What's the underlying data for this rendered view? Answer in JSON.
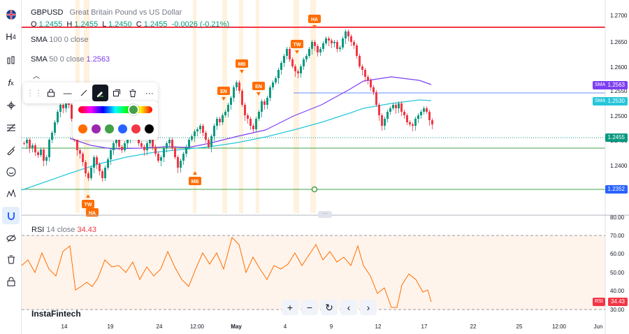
{
  "header": {
    "symbol": "GBPUSD",
    "name": "Great Britain Pound vs US Dollar",
    "o_label": "O",
    "o_value": "1.2455",
    "h_label": "H",
    "h_value": "1.2455",
    "l_label": "L",
    "l_value": "1.2450",
    "c_label": "C",
    "c_value": "1.2455",
    "change": "-0.0026 (-0.21%)"
  },
  "sma100": {
    "label": "SMA",
    "params": "100 0 close",
    "tag": "SMA",
    "value": "1.2530",
    "color": "#26c6da"
  },
  "sma50": {
    "label": "SMA",
    "params": "50 0 close",
    "value": "1.2563",
    "tag": "SMA",
    "color": "#7e3ff2"
  },
  "price_axis": {
    "ticks": [
      "1.2700",
      "1.2650",
      "1.2600",
      "1.2550",
      "1.2500",
      "1.2450",
      "1.2400",
      "1.2350"
    ],
    "last_price": "1.2455",
    "level_price": "1.2352"
  },
  "rsi": {
    "label": "RSI",
    "params": "14 close",
    "value": "34.43",
    "tag": "RSI",
    "ticks": [
      "80.00",
      "70.00",
      "60.00",
      "50.00",
      "40.00",
      "30.00"
    ]
  },
  "time_axis": [
    "14",
    "19",
    "24",
    "12:00",
    "May",
    "4",
    "9",
    "12",
    "17",
    "22",
    "25",
    "12:00",
    "Jun"
  ],
  "markers": [
    "HA",
    "TW",
    "MB",
    "EN",
    "EN",
    "MB",
    "TW",
    "HA"
  ],
  "watermark": "InstaFintech",
  "drawing_colors": [
    "#ff6d00",
    "#9c27b0",
    "#43a047",
    "#2962ff",
    "#f23645",
    "#000000"
  ],
  "colors": {
    "up": "#089981",
    "down": "#f23645",
    "accent": "#2962ff",
    "marker": "#ff6d00"
  },
  "toolbar_icons": [
    "flag-icon",
    "crosshair-icon",
    "h4-icon",
    "bars-icon",
    "fx-icon",
    "pen-tool-icon",
    "fib-icon",
    "brush-icon",
    "emoji-icon",
    "pattern-icon",
    "magnet-icon",
    "eye-off-icon",
    "trash-icon",
    "lock-icon"
  ],
  "drawing_bar_icons": [
    "drag-handle-icon",
    "lock-icon",
    "line-style-icon",
    "line-icon",
    "pencil-icon",
    "copy-icon",
    "trash-icon",
    "more-icon"
  ],
  "bottom_controls": [
    "+",
    "−",
    "↻",
    "‹",
    "›"
  ]
}
